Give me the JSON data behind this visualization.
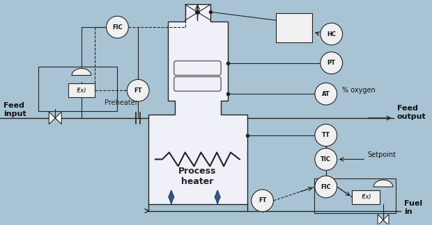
{
  "bg_color": "#a8c4d4",
  "heater_body_color": "#f0f0f8",
  "line_color": "#222222",
  "dashed_color": "#222222",
  "instrument_color": "#f0f0f0",
  "labels": {
    "feed_input": "Feed\ninput",
    "feed_output": "Feed\noutput",
    "fuel_in": "Fuel\nin",
    "preheater": "Preheater",
    "process_heater": "Process\nheater",
    "percent_oxygen": "% oxygen",
    "setpoint": "Setpoint"
  }
}
